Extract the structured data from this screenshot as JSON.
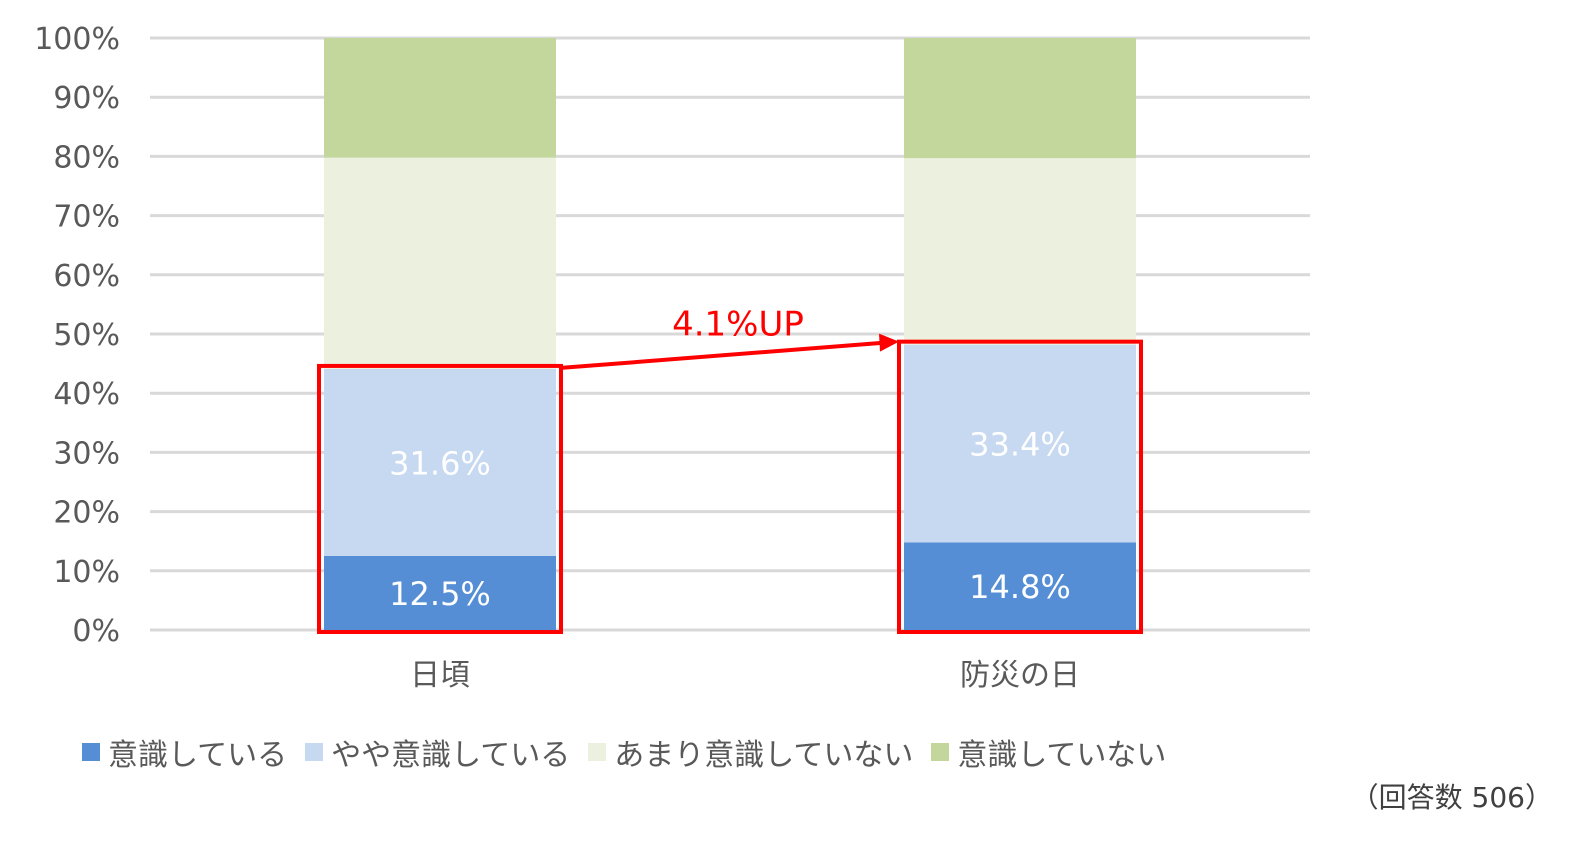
{
  "chart_data": {
    "type": "bar",
    "stacked": true,
    "categories": [
      "日頃",
      "防災の日"
    ],
    "series": [
      {
        "name": "意識している",
        "values": [
          12.5,
          14.8
        ],
        "color": "#558ED5",
        "label_color": "#ffffff"
      },
      {
        "name": "やや意識している",
        "values": [
          31.6,
          33.4
        ],
        "color": "#C6D9F1",
        "label_color": "#ffffff"
      },
      {
        "name": "あまり意識していない",
        "values": [
          35.7,
          31.5
        ],
        "color": "#EBF1DE"
      },
      {
        "name": "意識していない",
        "values": [
          20.2,
          20.3
        ],
        "color": "#C3D69B"
      }
    ],
    "data_labels": [
      [
        "12.5%",
        "14.8%"
      ],
      [
        "31.6%",
        "33.4%"
      ]
    ],
    "y_ticks": [
      "0%",
      "10%",
      "20%",
      "30%",
      "40%",
      "50%",
      "60%",
      "70%",
      "80%",
      "90%",
      "100%"
    ],
    "ylim": [
      0,
      100
    ],
    "grid": true,
    "legend_position": "bottom",
    "annotation": {
      "text": "4.1%UP",
      "color": "#FF0000"
    },
    "highlight_color": "#FF0000",
    "title": "",
    "xlabel": "",
    "ylabel": ""
  },
  "note": "（回答数 506）"
}
